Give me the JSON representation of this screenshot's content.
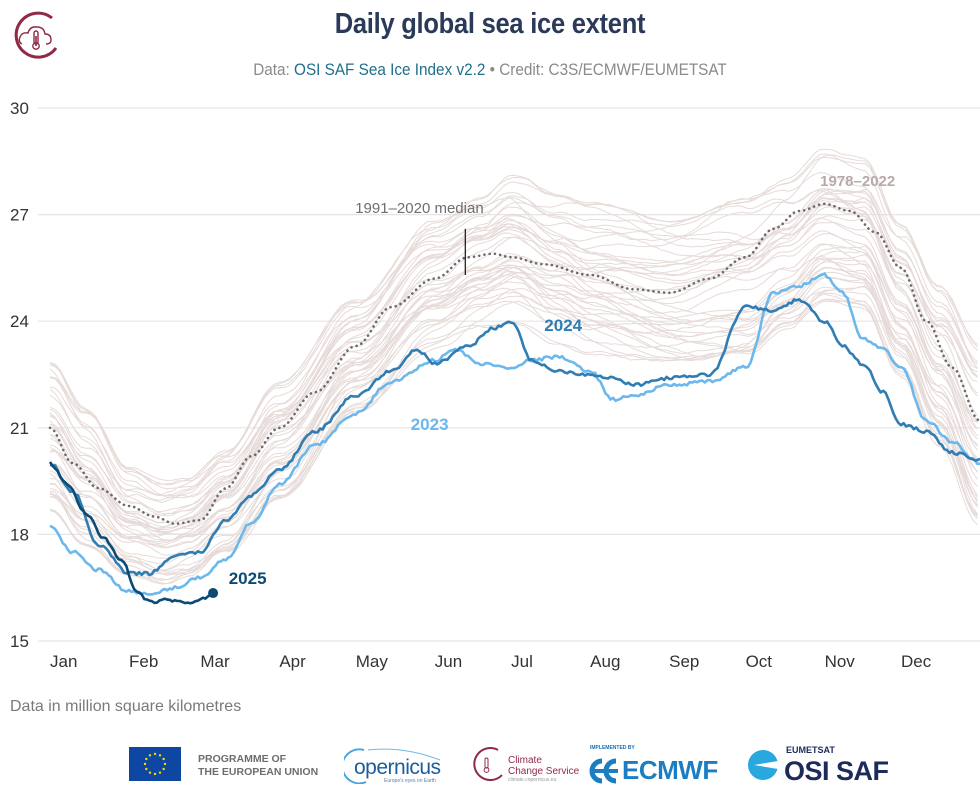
{
  "header": {
    "title": "Daily global sea ice extent",
    "subtitle_prefix": "Data: ",
    "subtitle_source": "OSI SAF Sea Ice Index v2.2",
    "subtitle_credit": " • Credit: C3S/ECMWF/EUMETSAT",
    "logo": "climate-change-service-logo"
  },
  "footnote": "Data in million square kilometres",
  "footer": {
    "eu_line1": "PROGRAMME OF",
    "eu_line2": "THE EUROPEAN UNION",
    "copernicus": "opernicus",
    "copernicus_c": "C",
    "copernicus_tagline": "Europe's eyes on Earth",
    "c3s_line1": "Climate",
    "c3s_line2": "Change Service",
    "c3s_url": "climate.copernicus.eu",
    "ecmwf_top": "IMPLEMENTED BY",
    "ecmwf": "ECMWF",
    "osi_top": "EUMETSAT",
    "osi": "OSI SAF"
  },
  "colors": {
    "historical": "#e6dbd8",
    "median": "#6b6b6b",
    "y2023": "#6cb8ec",
    "y2024": "#2f7db3",
    "y2025": "#0b4a75",
    "grid": "#e5e5e5",
    "title": "#2c3a5a",
    "source_link": "#1f6f8b"
  },
  "chart_data": {
    "type": "line",
    "title": "Daily global sea ice extent",
    "xlabel": "",
    "ylabel": "Data in million square kilometres",
    "ylim": [
      15,
      30
    ],
    "yticks": [
      15,
      18,
      21,
      24,
      27,
      30
    ],
    "xlim_day_of_year": [
      1,
      366
    ],
    "xticks": [
      {
        "label": "Jan",
        "day": 1
      },
      {
        "label": "Feb",
        "day": 32
      },
      {
        "label": "Mar",
        "day": 60
      },
      {
        "label": "Apr",
        "day": 91
      },
      {
        "label": "May",
        "day": 121
      },
      {
        "label": "Jun",
        "day": 152
      },
      {
        "label": "Jul",
        "day": 182
      },
      {
        "label": "Aug",
        "day": 213
      },
      {
        "label": "Sep",
        "day": 244
      },
      {
        "label": "Oct",
        "day": 274
      },
      {
        "label": "Nov",
        "day": 305
      },
      {
        "label": "Dec",
        "day": 335
      }
    ],
    "grid": true,
    "annotations": [
      {
        "text": "1991–2020 median",
        "day": 164,
        "value": 25.3
      },
      {
        "text": "1978–2022",
        "day": 318,
        "value": 27.8
      },
      {
        "text": "2024",
        "day": 195,
        "value": 23.9
      },
      {
        "text": "2023",
        "day": 150,
        "value": 21.1
      },
      {
        "text": "2025",
        "day": 68,
        "value": 16.6
      }
    ],
    "historical_envelope": {
      "name": "1978–2022",
      "count": 45,
      "day": [
        1,
        15,
        32,
        46,
        55,
        70,
        91,
        121,
        152,
        170,
        182,
        200,
        213,
        244,
        274,
        290,
        305,
        320,
        335,
        350,
        366
      ],
      "low": [
        18.6,
        17.6,
        16.8,
        16.6,
        16.8,
        17.5,
        19.0,
        21.5,
        23.3,
        23.8,
        23.9,
        23.3,
        23.0,
        22.8,
        23.0,
        23.8,
        24.6,
        24.4,
        22.5,
        20.6,
        18.3
      ],
      "high": [
        22.9,
        21.6,
        19.9,
        19.5,
        19.6,
        20.4,
        22.3,
        24.6,
        26.9,
        27.6,
        28.2,
        27.7,
        27.4,
        26.9,
        27.5,
        28.0,
        28.8,
        28.6,
        26.8,
        25.0,
        23.3
      ]
    },
    "series": [
      {
        "name": "1991–2020 median",
        "style": "dotted",
        "day": [
          1,
          10,
          20,
          32,
          42,
          50,
          60,
          70,
          80,
          91,
          105,
          121,
          135,
          152,
          165,
          175,
          182,
          195,
          213,
          230,
          244,
          260,
          274,
          285,
          295,
          305,
          315,
          325,
          335,
          345,
          355,
          366
        ],
        "values": [
          21.0,
          20.0,
          19.3,
          18.8,
          18.5,
          18.3,
          18.4,
          19.3,
          20.2,
          21.0,
          22.0,
          23.3,
          24.4,
          25.2,
          25.8,
          25.9,
          25.8,
          25.6,
          25.3,
          24.9,
          24.8,
          25.2,
          25.8,
          26.6,
          27.1,
          27.3,
          27.1,
          26.5,
          25.5,
          24.0,
          22.7,
          21.2
        ]
      },
      {
        "name": "2023",
        "day": [
          1,
          10,
          20,
          32,
          40,
          50,
          60,
          70,
          80,
          91,
          105,
          121,
          135,
          152,
          160,
          170,
          182,
          190,
          200,
          213,
          222,
          230,
          244,
          260,
          274,
          285,
          295,
          305,
          312,
          320,
          328,
          335,
          345,
          355,
          366
        ],
        "values": [
          18.2,
          17.5,
          17.0,
          16.4,
          16.3,
          16.5,
          16.8,
          17.3,
          18.3,
          19.4,
          20.5,
          21.4,
          22.3,
          22.9,
          23.2,
          22.8,
          22.7,
          22.9,
          23.0,
          22.6,
          21.8,
          21.9,
          22.2,
          22.3,
          22.7,
          24.8,
          25.0,
          25.3,
          24.8,
          23.5,
          23.2,
          22.7,
          21.2,
          20.6,
          20.0
        ]
      },
      {
        "name": "2024",
        "day": [
          1,
          10,
          20,
          32,
          40,
          50,
          60,
          70,
          80,
          91,
          105,
          121,
          135,
          145,
          152,
          165,
          175,
          182,
          190,
          200,
          213,
          222,
          230,
          244,
          260,
          274,
          285,
          295,
          305,
          312,
          320,
          328,
          335,
          345,
          355,
          366
        ],
        "values": [
          20.0,
          19.2,
          17.7,
          16.9,
          16.9,
          17.4,
          17.5,
          18.4,
          19.1,
          19.8,
          20.9,
          21.9,
          22.6,
          23.2,
          22.8,
          23.3,
          23.8,
          24.0,
          22.9,
          22.6,
          22.5,
          22.4,
          22.2,
          22.4,
          22.5,
          24.4,
          24.3,
          24.6,
          24.0,
          23.3,
          22.8,
          22.0,
          21.1,
          20.9,
          20.3,
          20.1
        ]
      },
      {
        "name": "2025",
        "day": [
          1,
          8,
          15,
          22,
          29,
          35,
          40,
          46,
          52,
          58,
          62,
          65
        ],
        "values": [
          20.0,
          19.4,
          18.6,
          17.9,
          17.3,
          16.4,
          16.1,
          16.15,
          16.1,
          16.1,
          16.2,
          16.35
        ],
        "end_marker": true
      }
    ]
  }
}
